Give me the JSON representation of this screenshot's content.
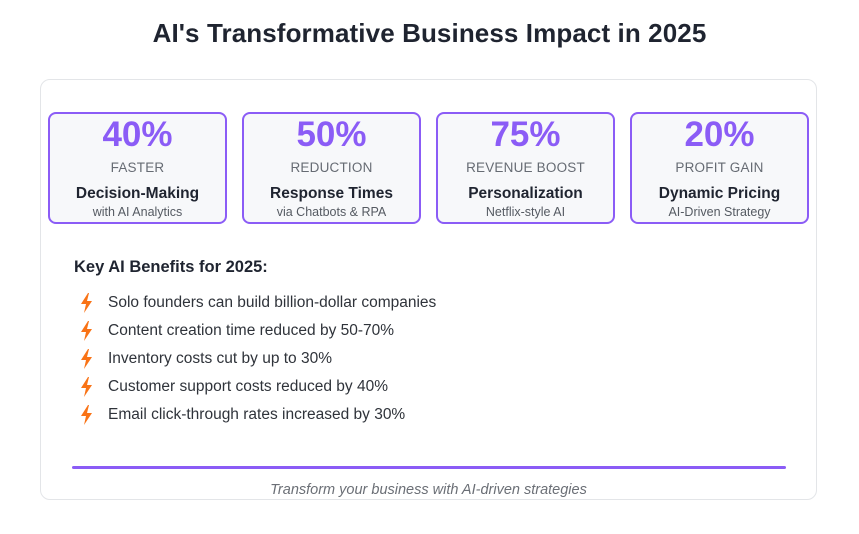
{
  "page": {
    "title": "AI's Transformative Business Impact in 2025"
  },
  "stats": [
    {
      "value": "40%",
      "unit": "FASTER",
      "label": "Decision-Making",
      "sub": "with AI Analytics"
    },
    {
      "value": "50%",
      "unit": "REDUCTION",
      "label": "Response Times",
      "sub": "via Chatbots & RPA"
    },
    {
      "value": "75%",
      "unit": "REVENUE BOOST",
      "label": "Personalization",
      "sub": "Netflix-style AI"
    },
    {
      "value": "20%",
      "unit": "PROFIT GAIN",
      "label": "Dynamic Pricing",
      "sub": "AI-Driven Strategy"
    }
  ],
  "benefits": {
    "title": "Key AI Benefits for 2025:",
    "icon": "lightning-bolt-icon",
    "items": [
      "Solo founders can build billion-dollar companies",
      "Content creation time reduced by 50-70%",
      "Inventory costs cut by up to 30%",
      "Customer support costs reduced by 40%",
      "Email click-through rates increased by 30%"
    ]
  },
  "footer": {
    "tagline": "Transform your business with AI-driven strategies"
  },
  "colors": {
    "accent": "#8b5cf6",
    "bolt": "#f97316",
    "card_bg": "#f7f8fa",
    "text": "#1f2430"
  }
}
